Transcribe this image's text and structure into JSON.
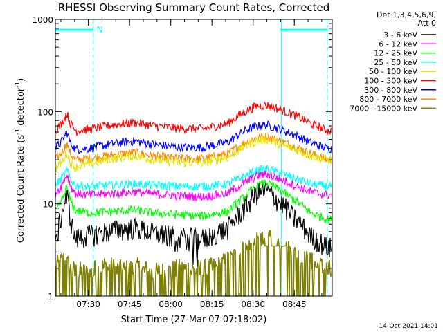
{
  "chart_data": {
    "type": "line",
    "title": "RHESSI Observing Summary Count Rates, Corrected",
    "xlabel": "Start Time (27-Mar-07 07:18:02)",
    "ylabel_main": "Corrected Count Rate (s",
    "ylabel_sup1": "-1",
    "ylabel_mid": " detector",
    "ylabel_sup2": "-1",
    "ylabel_end": ")",
    "y_scale": "log",
    "ylim": [
      1,
      1000
    ],
    "xlim": [
      7.3,
      8.98
    ],
    "x_ticks": [
      {
        "x": 7.5,
        "label": "07:30"
      },
      {
        "x": 7.75,
        "label": "07:45"
      },
      {
        "x": 8.0,
        "label": "08:00"
      },
      {
        "x": 8.25,
        "label": "08:15"
      },
      {
        "x": 8.5,
        "label": "08:30"
      },
      {
        "x": 8.75,
        "label": "08:45"
      }
    ],
    "y_ticks": [
      {
        "y": 1,
        "label": "1"
      },
      {
        "y": 10,
        "label": "10"
      },
      {
        "y": 100,
        "label": "100"
      },
      {
        "y": 1000,
        "label": "1000"
      }
    ],
    "legend_header": [
      "Det 1,3,4,5,6,9,",
      "Att 0"
    ],
    "legend_position": "right",
    "series": [
      {
        "name": "3 - 6 keV",
        "color": "#000000",
        "x": [
          7.3,
          7.34,
          7.37,
          7.39,
          7.42,
          7.5,
          7.65,
          7.78,
          7.9,
          8.05,
          8.2,
          8.35,
          8.45,
          8.52,
          8.58,
          8.65,
          8.75,
          8.85,
          8.95
        ],
        "y": [
          3.2,
          8,
          12,
          7,
          4.2,
          4.6,
          5.2,
          5.5,
          4.8,
          4.4,
          4.2,
          5.5,
          9,
          13,
          14,
          11,
          7,
          4.5,
          3.4
        ]
      },
      {
        "name": "6 - 12 keV",
        "color": "#ff00ff",
        "x": [
          7.3,
          7.34,
          7.37,
          7.39,
          7.42,
          7.5,
          7.65,
          7.78,
          7.9,
          8.05,
          8.2,
          8.35,
          8.45,
          8.52,
          8.58,
          8.65,
          8.75,
          8.85,
          8.95
        ],
        "y": [
          13,
          16,
          21,
          16,
          13,
          12.5,
          13,
          13.5,
          12.8,
          12.2,
          12,
          13,
          17,
          20,
          21,
          19,
          16,
          13.5,
          12.5
        ]
      },
      {
        "name": "12 - 25 keV",
        "color": "#00ff00",
        "x": [
          7.3,
          7.34,
          7.37,
          7.39,
          7.42,
          7.5,
          7.65,
          7.78,
          7.9,
          8.05,
          8.2,
          8.35,
          8.45,
          8.52,
          8.58,
          8.65,
          8.75,
          8.85,
          8.95
        ],
        "y": [
          8,
          11,
          15,
          11,
          8.5,
          8,
          8.3,
          8.6,
          8,
          7.6,
          7.4,
          8.3,
          12,
          15.5,
          17,
          14.5,
          11,
          8,
          6.8
        ]
      },
      {
        "name": "25 - 50 keV",
        "color": "#00ffff",
        "x": [
          7.3,
          7.34,
          7.37,
          7.39,
          7.42,
          7.5,
          7.65,
          7.78,
          7.9,
          8.05,
          8.2,
          8.35,
          8.45,
          8.52,
          8.58,
          8.65,
          8.75,
          8.85,
          8.95
        ],
        "y": [
          16,
          19,
          23,
          19,
          16,
          15.5,
          16,
          16.5,
          16,
          15.5,
          15.5,
          16.5,
          20,
          23,
          24,
          22,
          19,
          16.5,
          15.5
        ]
      },
      {
        "name": "50 - 100 keV",
        "color": "#e6e600",
        "x": [
          7.3,
          7.34,
          7.37,
          7.39,
          7.42,
          7.5,
          7.65,
          7.78,
          7.9,
          8.05,
          8.2,
          8.35,
          8.45,
          8.52,
          8.58,
          8.65,
          8.75,
          8.85,
          8.95
        ],
        "y": [
          24,
          28,
          36,
          28,
          25,
          27,
          31,
          33,
          30,
          28,
          28,
          32,
          42,
          48,
          50,
          45,
          39,
          33,
          30
        ]
      },
      {
        "name": "100 - 300 keV",
        "color": "#ff0000",
        "x": [
          7.3,
          7.34,
          7.37,
          7.39,
          7.42,
          7.5,
          7.65,
          7.78,
          7.9,
          8.05,
          8.2,
          8.35,
          8.45,
          8.52,
          8.58,
          8.65,
          8.75,
          8.85,
          8.95
        ],
        "y": [
          62,
          75,
          96,
          75,
          62,
          64,
          72,
          76,
          70,
          66,
          65,
          75,
          100,
          115,
          118,
          108,
          92,
          74,
          62
        ]
      },
      {
        "name": "300 - 800 keV",
        "color": "#0000ff",
        "x": [
          7.3,
          7.34,
          7.37,
          7.39,
          7.42,
          7.5,
          7.65,
          7.78,
          7.9,
          8.05,
          8.2,
          8.35,
          8.45,
          8.52,
          8.58,
          8.65,
          8.75,
          8.85,
          8.95
        ],
        "y": [
          40,
          48,
          60,
          46,
          39,
          40,
          45,
          48,
          44,
          41,
          41,
          47,
          62,
          70,
          72,
          66,
          56,
          46,
          40
        ]
      },
      {
        "name": "800 - 7000 keV",
        "color": "#ff8c00",
        "x": [
          7.3,
          7.34,
          7.37,
          7.39,
          7.42,
          7.5,
          7.65,
          7.78,
          7.9,
          8.05,
          8.2,
          8.35,
          8.45,
          8.52,
          8.58,
          8.65,
          8.75,
          8.85,
          8.95
        ],
        "y": [
          30,
          36,
          45,
          35,
          30,
          31,
          34,
          36,
          33,
          31,
          31,
          35,
          46,
          52,
          54,
          49,
          42,
          35,
          30
        ]
      },
      {
        "name": "7000 - 15000 keV",
        "color": "#808000",
        "x": [
          7.3,
          7.35,
          7.4,
          7.5,
          7.6,
          7.7,
          7.8,
          7.9,
          8.0,
          8.1,
          8.2,
          8.3,
          8.4,
          8.5,
          8.6,
          8.7,
          8.8,
          8.9,
          8.97
        ],
        "y": [
          1.6,
          2,
          1.5,
          1.4,
          1.7,
          1.5,
          1.6,
          1.4,
          1.5,
          1.6,
          1.5,
          1.7,
          2.2,
          2.9,
          3.2,
          2.6,
          2.0,
          1.7,
          1.5
        ]
      }
    ],
    "markers": [
      {
        "x": 7.3,
        "style": "solid",
        "color": "#00ffff"
      },
      {
        "x": 7.53,
        "style": "dashed",
        "color": "#00ffff"
      },
      {
        "x": 8.67,
        "style": "solid",
        "color": "#00ffff"
      },
      {
        "x": 8.95,
        "style": "dashed",
        "color": "#00ffff"
      }
    ],
    "bars": [
      {
        "x0": 7.3,
        "x1": 7.53,
        "y": 770,
        "color": "#00ffff"
      },
      {
        "x0": 8.67,
        "x1": 8.95,
        "y": 770,
        "color": "#00ffff"
      }
    ],
    "annotation": "N",
    "timestamp": "14-Oct-2021 14:01"
  }
}
